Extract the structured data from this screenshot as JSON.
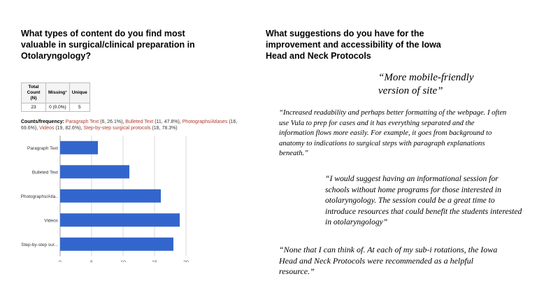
{
  "left_heading": "What types of content do you find most valuable in surgical/clinical preparation in Otolaryngology?",
  "right_heading": "What suggestions do you have for the improvement and accessibility of the Iowa Head and Neck Protocols",
  "stats_table": {
    "headers": [
      "Total Count (N)",
      "Missing",
      "Unique"
    ],
    "missing_marker": "*",
    "values": [
      "23",
      "0 (0.0%)",
      "5"
    ]
  },
  "counts": {
    "label": "Counts/frequency:",
    "items": [
      {
        "name": "Paragraph Text",
        "value": "(6, 26.1%)"
      },
      {
        "name": "Bulleted Text",
        "value": "(11, 47.8%)"
      },
      {
        "name": "Photographs/Atlases",
        "value": "(16, 69.6%)"
      },
      {
        "name": "Videos",
        "value": "(19, 82.6%)"
      },
      {
        "name": "Step-by-step surgical protocols",
        "value": "(18, 78.3%)"
      }
    ]
  },
  "chart_data": {
    "type": "bar",
    "orientation": "horizontal",
    "categories": [
      "Paragraph Text",
      "Bulleted Text",
      "Photographs/Atla..",
      "Videos",
      "Step-by-step sur..."
    ],
    "values": [
      6,
      11,
      16,
      19,
      18
    ],
    "xlim": [
      0,
      20
    ],
    "xticks": [
      0,
      5,
      10,
      15,
      20
    ],
    "grid": true,
    "bar_color": "#3366cc"
  },
  "quotes": [
    "“More mobile-friendly version of site”",
    "“Increased readability and perhaps better formatting of the webpage. I often use Vula to prep for cases and it has everything separated and the information flows more easily.  For example, it goes from background to anatomy to indications to surgical steps with paragraph explanations beneath.”",
    "“I would suggest having an informational session for schools without home programs for those interested in otolaryngology. The session could be a great time to introduce resources that could benefit the students interested in otolaryngology”",
    "“None that I can think of. At each of my sub-i rotations, the Iowa Head and Neck Protocols were recommended as a helpful resource.”"
  ]
}
